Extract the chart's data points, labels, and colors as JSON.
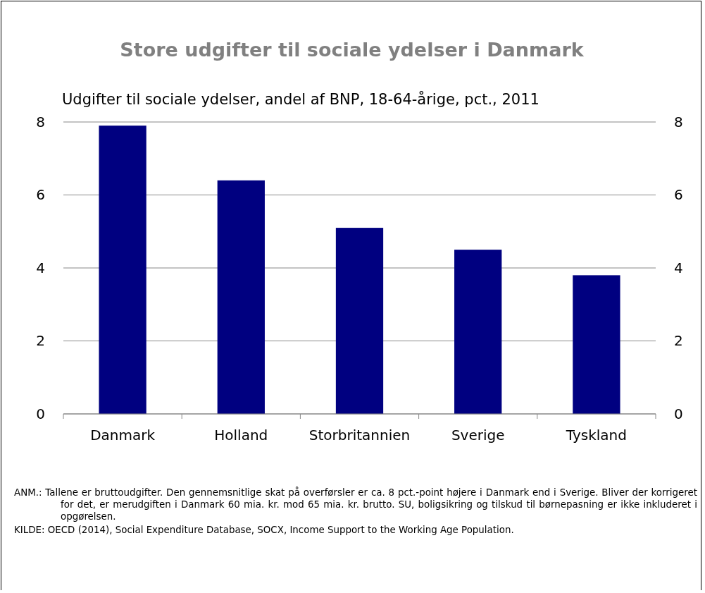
{
  "chart_data": {
    "type": "bar",
    "title": "Store udgifter til sociale ydelser i Danmark",
    "subtitle": "Udgifter til sociale ydelser, andel af BNP, 18-64-årige, pct., 2011",
    "categories": [
      "Danmark",
      "Holland",
      "Storbritannien",
      "Sverige",
      "Tyskland"
    ],
    "series": [
      {
        "color": "#000080",
        "values": [
          7.9,
          6.4,
          5.1,
          4.5,
          3.8
        ]
      }
    ],
    "ylim": [
      0,
      8
    ],
    "yticks": [
      0,
      2,
      4,
      6,
      8
    ],
    "y2lim": [
      0,
      8
    ],
    "y2ticks": [
      0,
      2,
      4,
      6,
      8
    ],
    "grid": "y",
    "annotations": [
      "ANM.: Tallene er bruttoudgifter. Den gennemsnitlige skat på overførsler er ca. 8 pct.-point højere i Danmark end i Sverige. Bliver der korrigeret for det, er merudgiften i Danmark 60 mia. kr. mod 65 mia. kr. brutto. SU, boligsikring og tilskud til børnepasning er ikke inkluderet i opgørelsen.",
      "KILDE: OECD (2014), Social Expenditure Database, SOCX, Income Support to the Working Age Population."
    ]
  }
}
